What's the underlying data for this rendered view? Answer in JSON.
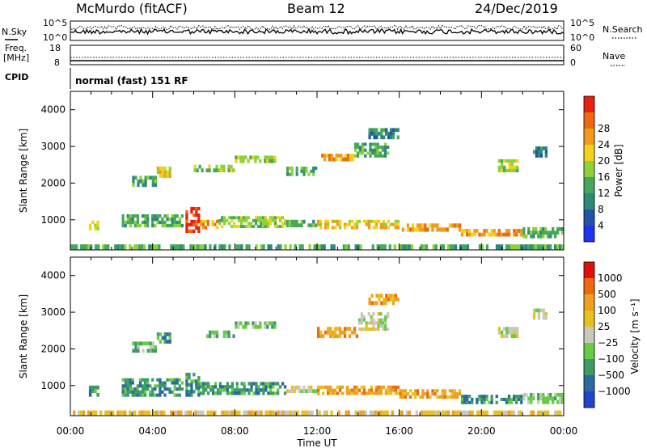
{
  "header": {
    "station": "McMurdo (fitACF)",
    "beam": "Beam 12",
    "date": "24/Dec/2019"
  },
  "noise_panel": {
    "left_label": "N.Sky",
    "right_label": "N.Search",
    "left_ticks": [
      "10^5",
      "10^0"
    ],
    "right_ticks": [
      "10^5",
      "10^0"
    ]
  },
  "freq_panel": {
    "left_label_line1": "Freq.",
    "left_label_line2": "[MHz]",
    "left_ticks": [
      "18",
      "8"
    ],
    "right_label": "Nave",
    "right_ticks": [
      "60",
      "0"
    ]
  },
  "cpid_panel": {
    "label": "CPID",
    "text": "normal (fast) 151 RF"
  },
  "x_axis": {
    "label": "Time UT",
    "ticks": [
      "00:00",
      "04:00",
      "08:00",
      "12:00",
      "16:00",
      "20:00",
      "00:00"
    ]
  },
  "colors": {
    "power": [
      "#1f33ee",
      "#2255a8",
      "#2b8a7a",
      "#47a85c",
      "#8fd13a",
      "#f2d21a",
      "#f29b1a",
      "#ee6a12",
      "#e8200e"
    ],
    "velocity": [
      "#2244cc",
      "#2b6aa0",
      "#3f9a6a",
      "#66cc44",
      "#c8c8bc",
      "#e8c020",
      "#f0a020",
      "#ee6a12",
      "#e01010"
    ]
  },
  "chart_data": [
    {
      "type": "heatmap",
      "title": "",
      "xlabel": "Time UT",
      "ylabel": "Slant Range [km]",
      "xlim": [
        0,
        24
      ],
      "ylim": [
        180,
        4500
      ],
      "yticks": [
        "1000",
        "2000",
        "3000",
        "4000"
      ],
      "colorbar_label": "Power [dB]",
      "colorbar_ticks": [
        "4",
        "8",
        "12",
        "16",
        "20",
        "24",
        "28"
      ],
      "patches": [
        {
          "t0": 0.0,
          "t1": 24.0,
          "r0": 200,
          "r1": 330,
          "level": 3
        },
        {
          "t0": 0.9,
          "t1": 1.4,
          "r0": 720,
          "r1": 980,
          "level": 5
        },
        {
          "t0": 2.5,
          "t1": 5.5,
          "r0": 800,
          "r1": 1150,
          "level": 3
        },
        {
          "t0": 5.6,
          "t1": 6.3,
          "r0": 650,
          "r1": 1350,
          "level": 8
        },
        {
          "t0": 6.3,
          "t1": 7.2,
          "r0": 750,
          "r1": 1000,
          "level": 6
        },
        {
          "t0": 7.2,
          "t1": 10.5,
          "r0": 780,
          "r1": 1100,
          "level": 4
        },
        {
          "t0": 10.5,
          "t1": 12.0,
          "r0": 800,
          "r1": 1000,
          "level": 3
        },
        {
          "t0": 12.0,
          "t1": 16.0,
          "r0": 750,
          "r1": 1000,
          "level": 5
        },
        {
          "t0": 16.0,
          "t1": 19.0,
          "r0": 680,
          "r1": 900,
          "level": 6
        },
        {
          "t0": 19.0,
          "t1": 22.0,
          "r0": 550,
          "r1": 750,
          "level": 6
        },
        {
          "t0": 22.0,
          "t1": 24.0,
          "r0": 500,
          "r1": 800,
          "level": 3
        },
        {
          "t0": 3.0,
          "t1": 4.2,
          "r0": 1900,
          "r1": 2200,
          "level": 3
        },
        {
          "t0": 4.2,
          "t1": 4.9,
          "r0": 2150,
          "r1": 2450,
          "level": 5
        },
        {
          "t0": 6.0,
          "t1": 8.0,
          "r0": 2300,
          "r1": 2500,
          "level": 4
        },
        {
          "t0": 8.0,
          "t1": 10.0,
          "r0": 2550,
          "r1": 2750,
          "level": 4
        },
        {
          "t0": 10.5,
          "t1": 12.0,
          "r0": 2200,
          "r1": 2450,
          "level": 3
        },
        {
          "t0": 12.2,
          "t1": 13.8,
          "r0": 2600,
          "r1": 2800,
          "level": 6
        },
        {
          "t0": 13.8,
          "t1": 15.5,
          "r0": 2700,
          "r1": 3100,
          "level": 3
        },
        {
          "t0": 14.5,
          "t1": 16.0,
          "r0": 3200,
          "r1": 3500,
          "level": 2
        },
        {
          "t0": 20.8,
          "t1": 21.8,
          "r0": 2300,
          "r1": 2650,
          "level": 4
        },
        {
          "t0": 22.5,
          "t1": 23.2,
          "r0": 2700,
          "r1": 3000,
          "level": 2
        }
      ]
    },
    {
      "type": "heatmap",
      "title": "",
      "xlabel": "Time UT",
      "ylabel": "Slant Range [km]",
      "xlim": [
        0,
        24
      ],
      "ylim": [
        180,
        4500
      ],
      "yticks": [
        "1000",
        "2000",
        "3000",
        "4000"
      ],
      "colorbar_label": "Velocity [m s⁻¹]",
      "colorbar_ticks": [
        "1000",
        "500",
        "100",
        "25",
        "−25",
        "−100",
        "−500",
        "−1000"
      ],
      "patches": [
        {
          "t0": 0.0,
          "t1": 24.0,
          "r0": 200,
          "r1": 320,
          "level": 5
        },
        {
          "t0": 0.9,
          "t1": 1.4,
          "r0": 700,
          "r1": 1000,
          "level": 2
        },
        {
          "t0": 2.5,
          "t1": 5.5,
          "r0": 700,
          "r1": 1200,
          "level": 2
        },
        {
          "t0": 5.6,
          "t1": 6.3,
          "r0": 700,
          "r1": 1350,
          "level": 2
        },
        {
          "t0": 6.3,
          "t1": 10.5,
          "r0": 750,
          "r1": 1100,
          "level": 2
        },
        {
          "t0": 10.5,
          "t1": 12.0,
          "r0": 800,
          "r1": 1000,
          "level": 4
        },
        {
          "t0": 12.0,
          "t1": 16.0,
          "r0": 750,
          "r1": 1000,
          "level": 6
        },
        {
          "t0": 16.0,
          "t1": 19.0,
          "r0": 650,
          "r1": 900,
          "level": 6
        },
        {
          "t0": 19.0,
          "t1": 22.0,
          "r0": 500,
          "r1": 750,
          "level": 2
        },
        {
          "t0": 22.0,
          "t1": 24.0,
          "r0": 500,
          "r1": 800,
          "level": 3
        },
        {
          "t0": 3.0,
          "t1": 4.2,
          "r0": 1900,
          "r1": 2200,
          "level": 3
        },
        {
          "t0": 4.2,
          "t1": 4.9,
          "r0": 2150,
          "r1": 2450,
          "level": 2
        },
        {
          "t0": 6.5,
          "t1": 8.0,
          "r0": 2300,
          "r1": 2500,
          "level": 3
        },
        {
          "t0": 8.0,
          "t1": 10.0,
          "r0": 2550,
          "r1": 2750,
          "level": 3
        },
        {
          "t0": 12.0,
          "t1": 14.0,
          "r0": 2300,
          "r1": 2600,
          "level": 6
        },
        {
          "t0": 14.0,
          "t1": 15.5,
          "r0": 2500,
          "r1": 3000,
          "level": 4
        },
        {
          "t0": 14.5,
          "t1": 16.0,
          "r0": 3200,
          "r1": 3500,
          "level": 6
        },
        {
          "t0": 20.8,
          "t1": 21.8,
          "r0": 2300,
          "r1": 2600,
          "level": 4
        },
        {
          "t0": 22.5,
          "t1": 23.2,
          "r0": 2800,
          "r1": 3100,
          "level": 4
        }
      ]
    }
  ]
}
